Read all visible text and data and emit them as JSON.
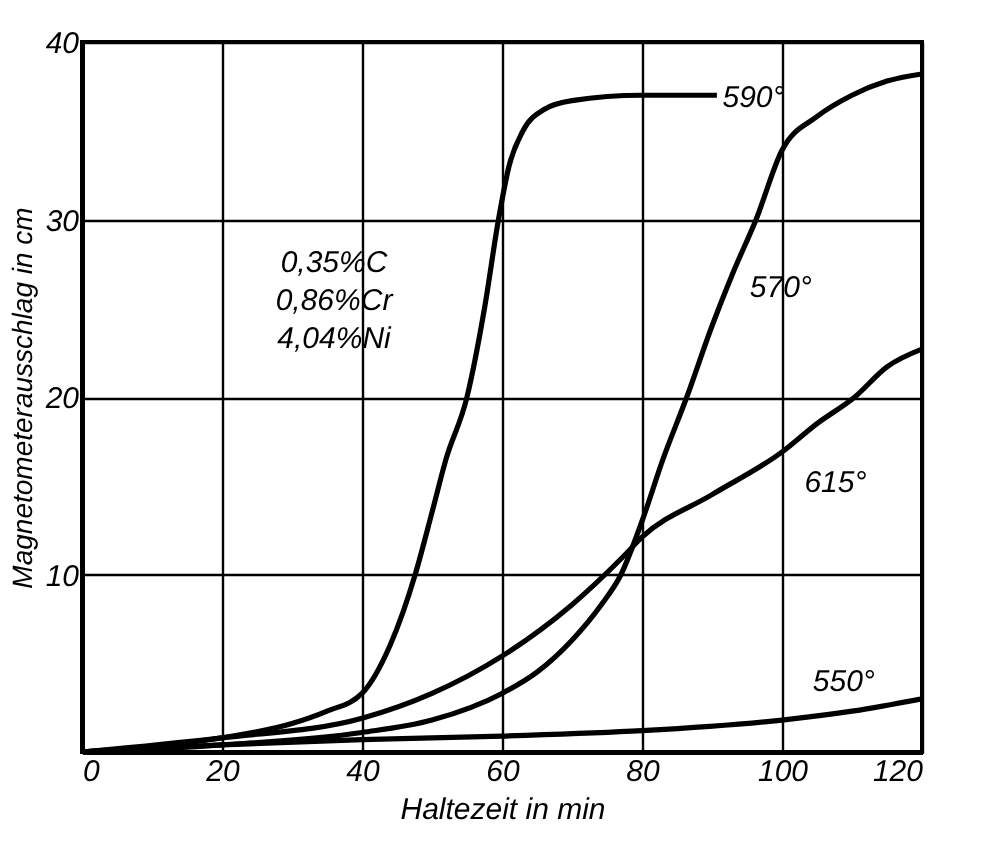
{
  "chart_data": {
    "type": "line",
    "xlabel": "Haltezeit in min",
    "ylabel": "Magnetometerausschlag in cm",
    "xlim": [
      0,
      120
    ],
    "ylim": [
      0,
      40
    ],
    "xticks": [
      0,
      20,
      40,
      60,
      80,
      100,
      120
    ],
    "yticks": [
      {
        "value": 0,
        "label": null
      },
      10,
      20,
      30,
      40
    ],
    "grid": true,
    "marker": "none",
    "line_style": "solid",
    "series": [
      {
        "color": "#000000",
        "x": [
          0,
          10,
          20,
          30,
          35,
          40,
          44,
          47.6,
          50,
          52,
          55,
          57.5,
          59.5,
          61,
          63,
          66,
          70,
          80,
          90.7
        ],
        "values": [
          0,
          0.3,
          0.8,
          1.6,
          2.3,
          3.3,
          6,
          10,
          13.5,
          16.5,
          20,
          25,
          30,
          33,
          35,
          36.2,
          36.7,
          37,
          37
        ]
      },
      {
        "color": "#000000",
        "x": [
          0,
          20,
          40,
          50,
          60,
          65,
          70,
          74,
          77,
          80,
          83,
          86.4,
          90,
          93,
          96.3,
          100,
          105,
          110,
          115,
          120
        ],
        "values": [
          0,
          0.4,
          1.1,
          1.8,
          3.3,
          4.5,
          6.3,
          8.2,
          10,
          13,
          16.5,
          20,
          24,
          27,
          30,
          33.9,
          35.8,
          37,
          37.8,
          38.2
        ]
      },
      {
        "color": "#000000",
        "x": [
          0,
          20,
          40,
          50,
          60,
          70,
          77.3,
          80,
          90,
          100,
          105,
          110.4,
          115,
          120
        ],
        "values": [
          0,
          0.8,
          1.9,
          3.3,
          5.4,
          8.3,
          11,
          12.1,
          14.5,
          16.9,
          18.5,
          20,
          21.7,
          22.7
        ]
      },
      {
        "color": "#000000",
        "x": [
          0,
          20,
          40,
          60,
          80,
          100,
          110,
          120
        ],
        "values": [
          0,
          0.4,
          0.7,
          0.9,
          1.2,
          1.8,
          2.3,
          3
        ]
      }
    ],
    "annotations": [
      {
        "text": "590°",
        "x": 91.5,
        "y": 36.9
      },
      "570°",
      "615°",
      "550°",
      "0,35%C\n0,86%Cr\n4,04%Ni"
    ]
  }
}
